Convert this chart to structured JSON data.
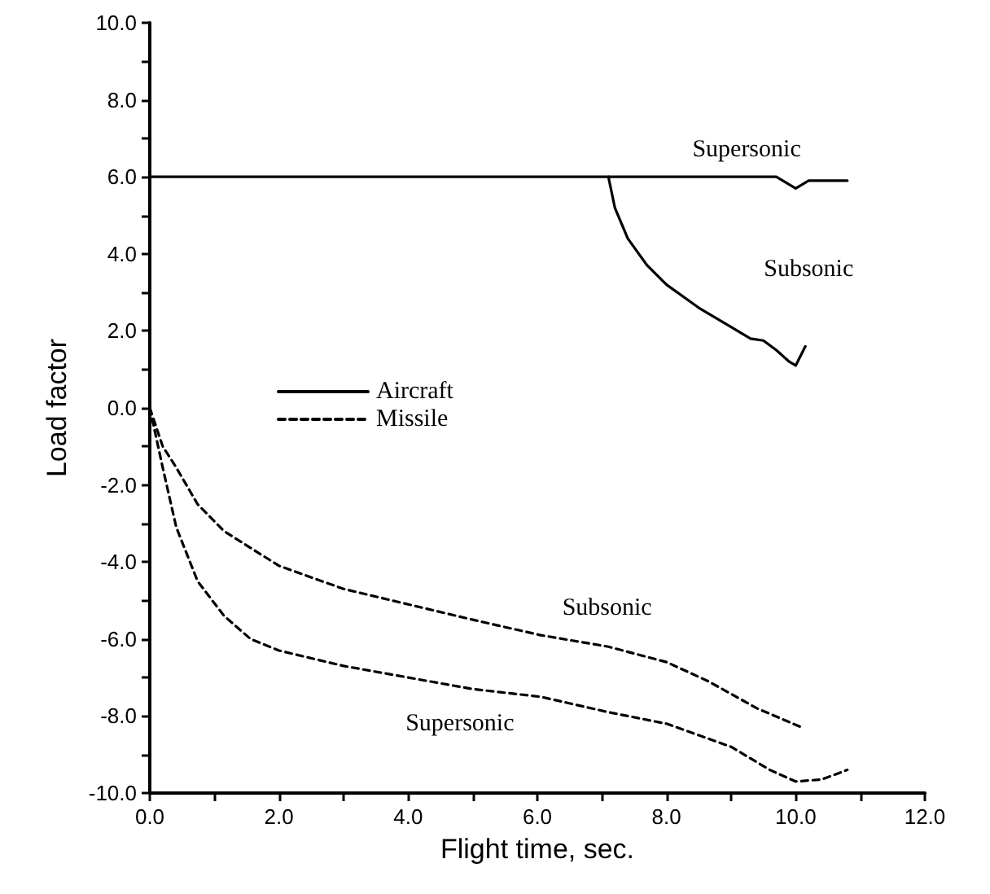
{
  "chart_data": {
    "type": "line",
    "xlabel": "Flight time, sec.",
    "ylabel": "Load factor",
    "xlim": [
      0,
      12
    ],
    "ylim": [
      -10,
      10
    ],
    "xticks": [
      {
        "value": 0,
        "label": "0.0"
      },
      {
        "value": 1,
        "label": null
      },
      {
        "value": 2,
        "label": "2.0"
      },
      {
        "value": 3,
        "label": null
      },
      {
        "value": 4,
        "label": "4.0"
      },
      {
        "value": 5,
        "label": null
      },
      {
        "value": 6,
        "label": "6.0"
      },
      {
        "value": 7,
        "label": null
      },
      {
        "value": 8,
        "label": "8.0"
      },
      {
        "value": 9,
        "label": null
      },
      {
        "value": 10,
        "label": "10.0"
      },
      {
        "value": 11,
        "label": null
      },
      {
        "value": 12,
        "label": "12.0"
      }
    ],
    "yticks": [
      {
        "value": -10,
        "label": "-10.0"
      },
      {
        "value": -9,
        "label": null
      },
      {
        "value": -8,
        "label": "-8.0"
      },
      {
        "value": -7,
        "label": null
      },
      {
        "value": -6,
        "label": "-6.0"
      },
      {
        "value": -5,
        "label": null
      },
      {
        "value": -4,
        "label": "-4.0"
      },
      {
        "value": -3,
        "label": null
      },
      {
        "value": -2,
        "label": "-2.0"
      },
      {
        "value": -1,
        "label": null
      },
      {
        "value": 0,
        "label": "0.0"
      },
      {
        "value": 1,
        "label": null
      },
      {
        "value": 2,
        "label": "2.0"
      },
      {
        "value": 3,
        "label": null
      },
      {
        "value": 4,
        "label": "4.0"
      },
      {
        "value": 5,
        "label": null
      },
      {
        "value": 6,
        "label": "6.0"
      },
      {
        "value": 7,
        "label": null
      },
      {
        "value": 8,
        "label": "8.0"
      },
      {
        "value": 9,
        "label": null
      },
      {
        "value": 10,
        "label": "10.0"
      }
    ],
    "grid": false,
    "legend": "center",
    "marker": "none",
    "series": [
      {
        "name": "Aircraft",
        "color": "#000000",
        "line_style": "solid",
        "x": [
          0,
          9.7,
          9.9,
          10.0,
          10.2,
          10.4,
          10.8
        ],
        "values": [
          6,
          6,
          5.8,
          5.7,
          5.9,
          5.9,
          5.9
        ]
      },
      {
        "color": "#000000",
        "line_style": "solid",
        "x": [
          7.1,
          7.2,
          7.4,
          7.7,
          8.0,
          8.5,
          9.0,
          9.3,
          9.5,
          9.7,
          9.9,
          10.0,
          10.15
        ],
        "values": [
          6,
          5.2,
          4.4,
          3.7,
          3.2,
          2.6,
          2.1,
          1.8,
          1.75,
          1.5,
          1.2,
          1.1,
          1.6
        ]
      },
      {
        "name": "Missile",
        "color": "#000000",
        "line_style": "dashed",
        "x": [
          0,
          0.2,
          0.41,
          0.74,
          1.15,
          2.0,
          3.0,
          4.0,
          5.0,
          6.05,
          7.1,
          8.0,
          8.65,
          9.4,
          10.1
        ],
        "values": [
          0,
          -1.0,
          -1.55,
          -2.5,
          -3.2,
          -4.1,
          -4.7,
          -5.1,
          -5.5,
          -5.9,
          -6.2,
          -6.6,
          -7.1,
          -7.8,
          -8.3
        ]
      },
      {
        "color": "#000000",
        "line_style": "dashed",
        "x": [
          0,
          0.2,
          0.41,
          0.74,
          1.15,
          1.56,
          2.0,
          3.0,
          4.0,
          5.0,
          6.05,
          7.1,
          8.0,
          9.0,
          9.6,
          10.0,
          10.4,
          10.8
        ],
        "values": [
          0,
          -1.55,
          -3.1,
          -4.5,
          -5.4,
          -6.0,
          -6.3,
          -6.7,
          -7.0,
          -7.3,
          -7.5,
          -7.9,
          -8.2,
          -8.8,
          -9.4,
          -9.7,
          -9.65,
          -9.4
        ]
      }
    ],
    "annotations": [
      "Supersonic",
      "Subsonic",
      "Subsonic",
      "Supersonic"
    ]
  }
}
